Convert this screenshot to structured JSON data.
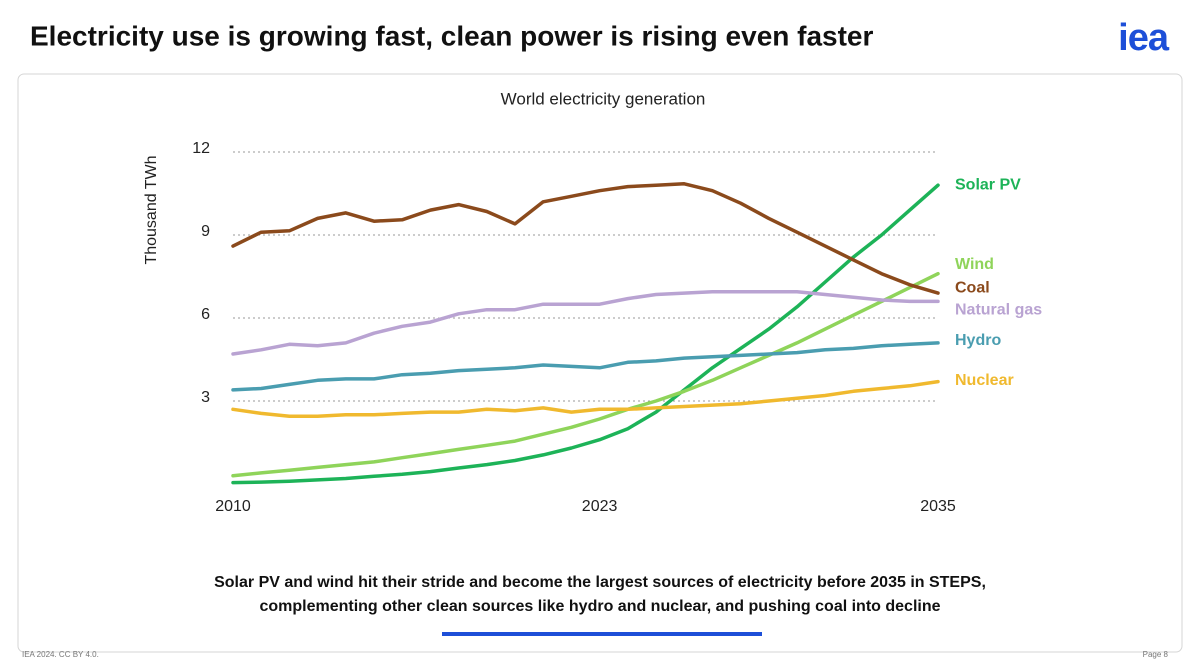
{
  "header": {
    "title": "Electricity use is growing fast, clean power is rising even faster",
    "logo": "iea"
  },
  "chart_data": {
    "type": "line",
    "title": "World electricity generation",
    "y_label": "Thousand TWh",
    "x": [
      2010,
      2011,
      2012,
      2013,
      2014,
      2015,
      2016,
      2017,
      2018,
      2019,
      2020,
      2021,
      2022,
      2023,
      2024,
      2025,
      2026,
      2027,
      2028,
      2029,
      2030,
      2031,
      2032,
      2033,
      2034,
      2035
    ],
    "xlim": [
      2010,
      2035
    ],
    "xticks": [
      2010,
      2023,
      2035
    ],
    "ylim": [
      0,
      12
    ],
    "yticks": [
      3,
      6,
      9,
      12
    ],
    "grid": true,
    "series": [
      {
        "name": "Solar PV",
        "color": "#1db358",
        "values": [
          0.05,
          0.07,
          0.1,
          0.15,
          0.2,
          0.28,
          0.35,
          0.45,
          0.58,
          0.7,
          0.85,
          1.05,
          1.3,
          1.6,
          2.0,
          2.6,
          3.4,
          4.2,
          4.9,
          5.6,
          6.4,
          7.3,
          8.2,
          9.0,
          9.9,
          10.8
        ]
      },
      {
        "name": "Wind",
        "color": "#8fd45a",
        "values": [
          0.3,
          0.4,
          0.5,
          0.6,
          0.7,
          0.8,
          0.95,
          1.1,
          1.25,
          1.4,
          1.55,
          1.8,
          2.05,
          2.35,
          2.7,
          3.0,
          3.35,
          3.75,
          4.2,
          4.65,
          5.1,
          5.6,
          6.1,
          6.6,
          7.1,
          7.6
        ]
      },
      {
        "name": "Coal",
        "color": "#8b4a1c",
        "values": [
          8.6,
          9.1,
          9.15,
          9.6,
          9.8,
          9.5,
          9.55,
          9.9,
          10.1,
          9.85,
          9.4,
          10.2,
          10.4,
          10.6,
          10.75,
          10.8,
          10.85,
          10.6,
          10.15,
          9.6,
          9.1,
          8.6,
          8.1,
          7.6,
          7.2,
          6.9
        ]
      },
      {
        "name": "Natural gas",
        "color": "#b9a3d2",
        "values": [
          4.7,
          4.85,
          5.05,
          5.0,
          5.1,
          5.45,
          5.7,
          5.85,
          6.15,
          6.3,
          6.3,
          6.5,
          6.5,
          6.5,
          6.7,
          6.85,
          6.9,
          6.95,
          6.95,
          6.95,
          6.95,
          6.85,
          6.75,
          6.65,
          6.6,
          6.6
        ]
      },
      {
        "name": "Hydro",
        "color": "#4a9db0",
        "values": [
          3.4,
          3.45,
          3.6,
          3.75,
          3.8,
          3.8,
          3.95,
          4.0,
          4.1,
          4.15,
          4.2,
          4.3,
          4.25,
          4.2,
          4.4,
          4.45,
          4.55,
          4.6,
          4.65,
          4.7,
          4.75,
          4.85,
          4.9,
          5.0,
          5.05,
          5.1
        ]
      },
      {
        "name": "Nuclear",
        "color": "#f0b92e",
        "values": [
          2.7,
          2.55,
          2.45,
          2.45,
          2.5,
          2.5,
          2.55,
          2.6,
          2.6,
          2.7,
          2.65,
          2.75,
          2.6,
          2.7,
          2.7,
          2.75,
          2.8,
          2.85,
          2.9,
          3.0,
          3.1,
          3.2,
          3.35,
          3.45,
          3.55,
          3.7
        ]
      }
    ]
  },
  "caption": [
    "Solar PV and wind hit their stride and become the largest sources of electricity before 2035 in STEPS,",
    "complementing other clean sources like hydro and nuclear, and pushing coal into decline"
  ],
  "footer": {
    "source": "IEA 2024. CC BY 4.0.",
    "page": "Page 8"
  }
}
